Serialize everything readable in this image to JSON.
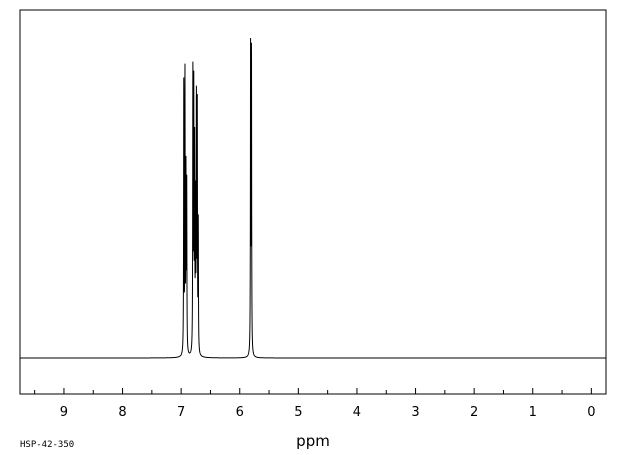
{
  "chart_data": {
    "type": "line",
    "xlabel": "ppm",
    "spectrum_code": "HSP-42-350",
    "xlim": [
      9.75,
      -0.25
    ],
    "ylim": [
      0,
      1
    ],
    "x_reversed": true,
    "grid": false,
    "major_ticks": [
      9,
      8,
      7,
      6,
      5,
      4,
      3,
      2,
      1,
      0
    ],
    "tick_labels": [
      "9",
      "8",
      "7",
      "6",
      "5",
      "4",
      "3",
      "2",
      "1",
      "0"
    ],
    "baseline_level": 0.0,
    "series": [
      {
        "color": "#000000",
        "peaks": [
          {
            "ppm": 6.955,
            "height": 0.86
          },
          {
            "ppm": 6.935,
            "height": 0.88
          },
          {
            "ppm": 6.918,
            "height": 0.55
          },
          {
            "ppm": 6.905,
            "height": 0.53
          },
          {
            "ppm": 6.8,
            "height": 0.88
          },
          {
            "ppm": 6.785,
            "height": 0.82
          },
          {
            "ppm": 6.77,
            "height": 0.64
          },
          {
            "ppm": 6.755,
            "height": 0.46
          },
          {
            "ppm": 6.74,
            "height": 0.78
          },
          {
            "ppm": 6.725,
            "height": 0.77
          },
          {
            "ppm": 6.708,
            "height": 0.4
          },
          {
            "ppm": 5.815,
            "height": 0.98
          },
          {
            "ppm": 5.8,
            "height": 0.95
          }
        ]
      }
    ]
  }
}
